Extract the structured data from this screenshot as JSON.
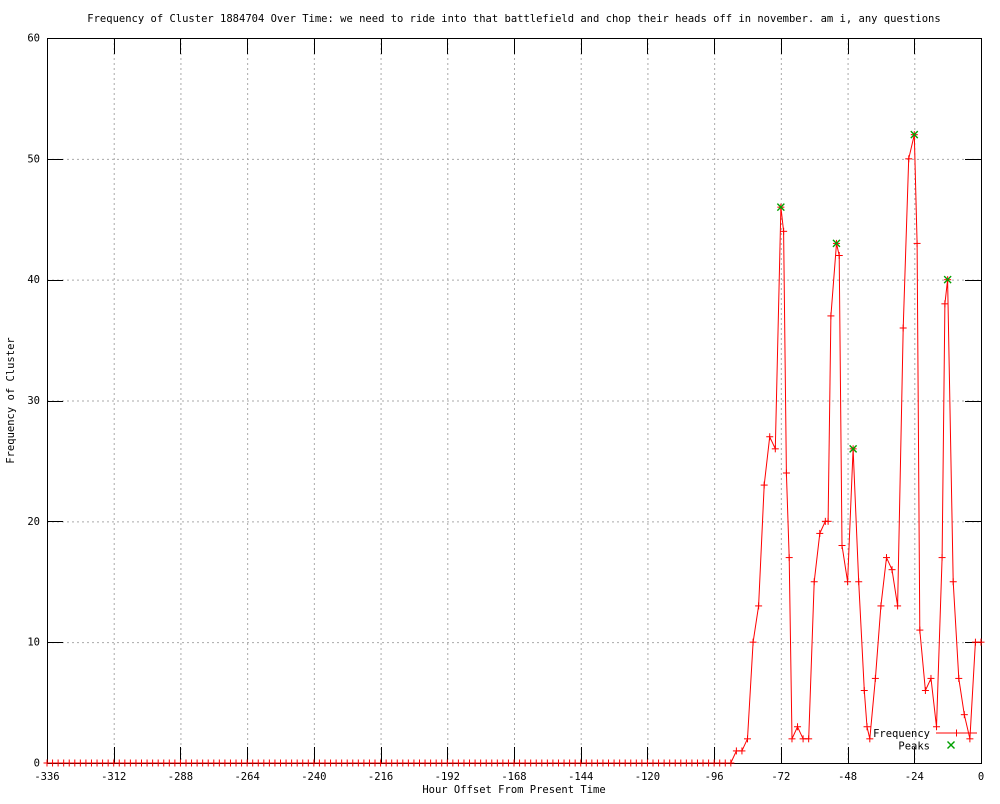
{
  "chart_data": {
    "type": "line",
    "title": "Frequency of Cluster 1884704 Over Time: we need to ride into that battlefield and chop their heads off in november. am i, any questions",
    "xlabel": "Hour Offset From Present Time",
    "ylabel": "Frequency of Cluster",
    "xlim": [
      -336,
      0
    ],
    "ylim": [
      0,
      60
    ],
    "xticks": [
      -336,
      -312,
      -288,
      -264,
      -240,
      -216,
      -192,
      -168,
      -144,
      -120,
      -96,
      -72,
      -48,
      -24,
      0
    ],
    "yticks": [
      0,
      10,
      20,
      30,
      40,
      50,
      60
    ],
    "grid": true,
    "grid_color": "#aaaaaa",
    "background_color": "#ffffff",
    "border_color": "#000000",
    "legend_position": "bottom-right",
    "series": [
      {
        "name": "Frequency",
        "color": "#ff0000",
        "marker": "plus",
        "flat_segment": {
          "from": -336,
          "to": -90,
          "step": 2,
          "value": 0
        },
        "points": [
          [
            -88,
            1
          ],
          [
            -86,
            1
          ],
          [
            -84,
            2
          ],
          [
            -82,
            10
          ],
          [
            -80,
            13
          ],
          [
            -78,
            23
          ],
          [
            -76,
            27
          ],
          [
            -74,
            26
          ],
          [
            -72,
            46
          ],
          [
            -71,
            44
          ],
          [
            -70,
            24
          ],
          [
            -69,
            17
          ],
          [
            -68,
            2
          ],
          [
            -66,
            3
          ],
          [
            -64,
            2
          ],
          [
            -62,
            2
          ],
          [
            -60,
            15
          ],
          [
            -58,
            19
          ],
          [
            -56,
            20
          ],
          [
            -55,
            20
          ],
          [
            -54,
            37
          ],
          [
            -52,
            43
          ],
          [
            -51,
            42
          ],
          [
            -50,
            18
          ],
          [
            -48,
            15
          ],
          [
            -46,
            26
          ],
          [
            -44,
            15
          ],
          [
            -42,
            6
          ],
          [
            -41,
            3
          ],
          [
            -40,
            2
          ],
          [
            -38,
            7
          ],
          [
            -36,
            13
          ],
          [
            -34,
            17
          ],
          [
            -32,
            16
          ],
          [
            -30,
            13
          ],
          [
            -28,
            36
          ],
          [
            -26,
            50
          ],
          [
            -24,
            52
          ],
          [
            -23,
            43
          ],
          [
            -22,
            11
          ],
          [
            -20,
            6
          ],
          [
            -18,
            7
          ],
          [
            -16,
            3
          ],
          [
            -14,
            17
          ],
          [
            -13,
            38
          ],
          [
            -12,
            40
          ],
          [
            -10,
            15
          ],
          [
            -8,
            7
          ],
          [
            -6,
            4
          ],
          [
            -4,
            2
          ],
          [
            -2,
            10
          ],
          [
            0,
            10
          ]
        ]
      },
      {
        "name": "Peaks",
        "color": "#00a000",
        "marker": "x",
        "points": [
          [
            -72,
            46
          ],
          [
            -52,
            43
          ],
          [
            -46,
            26
          ],
          [
            -24,
            52
          ],
          [
            -12,
            40
          ]
        ]
      }
    ]
  }
}
